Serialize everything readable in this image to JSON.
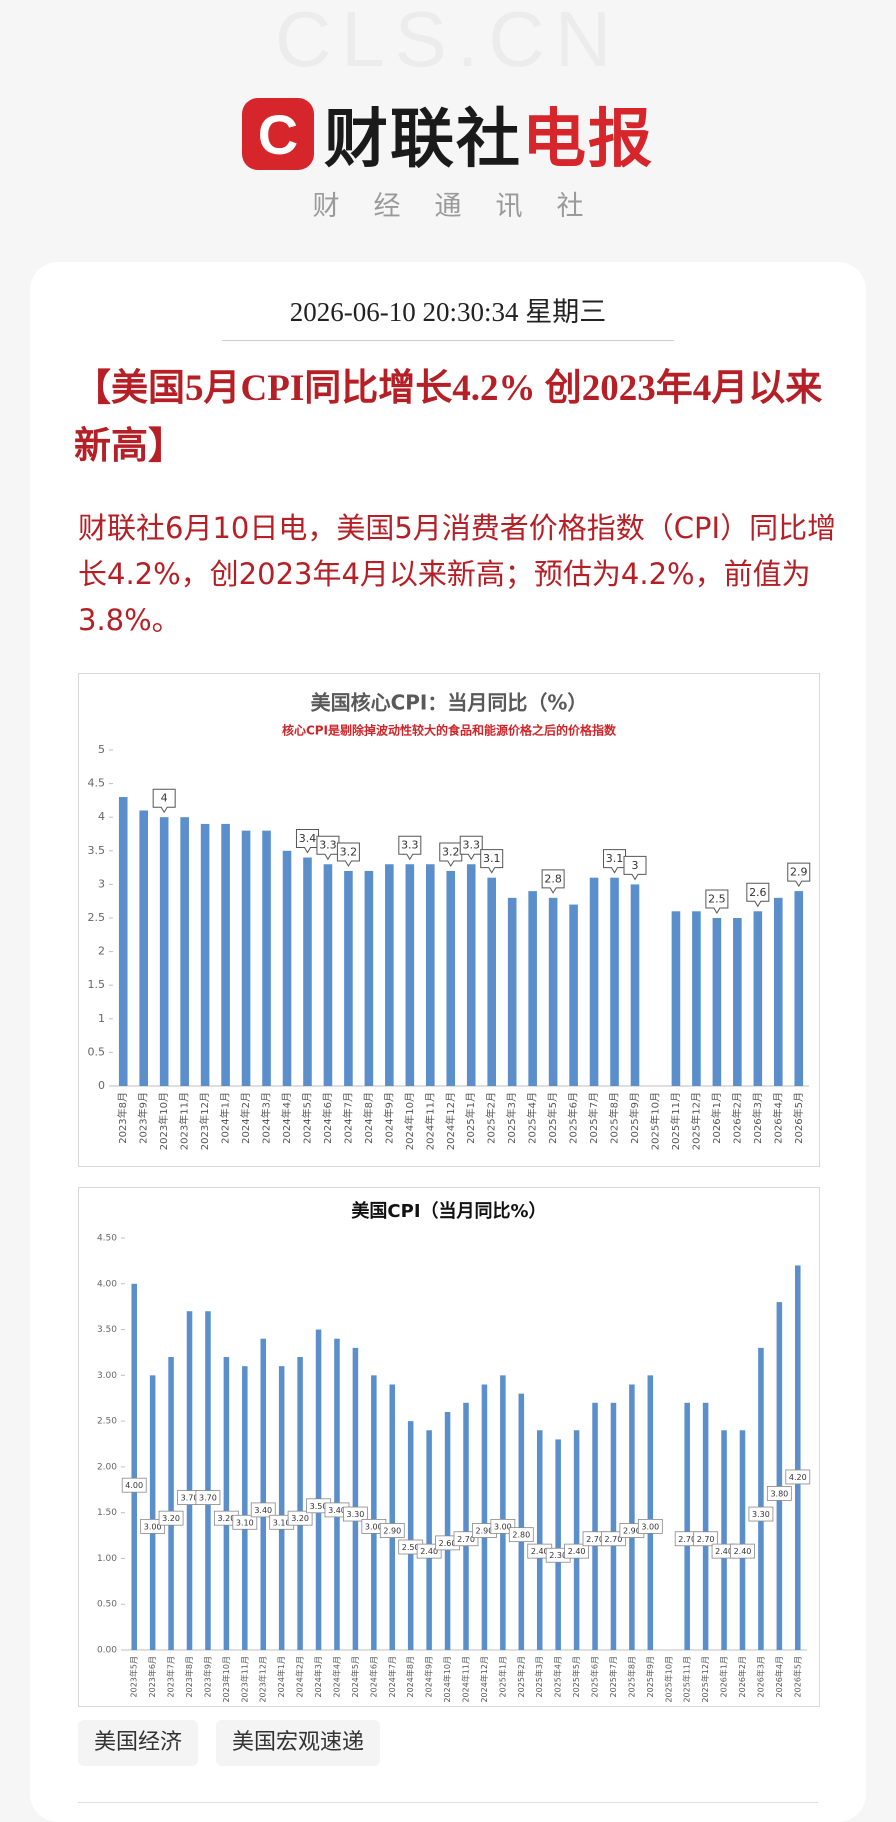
{
  "header": {
    "watermark": "CLS.CN",
    "logo_icon": "C",
    "brand": [
      "财联社",
      "电报"
    ],
    "tagline": "财经通讯社"
  },
  "article": {
    "datetime": "2026-06-10 20:30:34 星期三",
    "title": "【美国5月CPI同比增长4.2% 创2023年4月以来新高】",
    "body": "财联社6月10日电，美国5月消费者价格指数（CPI）同比增长4.2%，创2023年4月以来新高；预估为4.2%，前值为3.8%。"
  },
  "chart_data": [
    {
      "type": "bar",
      "title": "美国核心CPI：当月同比（%）",
      "subtitle": "核心CPI是剔除掉波动性较大的食品和能源价格之后的价格指数",
      "categories": [
        "2023年8月",
        "2023年9月",
        "2023年10月",
        "2023年11月",
        "2023年12月",
        "2024年1月",
        "2024年2月",
        "2024年3月",
        "2024年4月",
        "2024年5月",
        "2024年6月",
        "2024年7月",
        "2024年8月",
        "2024年9月",
        "2024年10月",
        "2024年11月",
        "2024年12月",
        "2025年1月",
        "2025年2月",
        "2025年3月",
        "2025年4月",
        "2025年5月",
        "2025年6月",
        "2025年7月",
        "2025年8月",
        "2025年9月",
        "2025年10月",
        "2025年11月",
        "2025年12月",
        "2026年1月",
        "2026年2月",
        "2026年3月",
        "2026年4月",
        "2026年5月"
      ],
      "values": [
        4.3,
        4.1,
        4.0,
        4.0,
        3.9,
        3.9,
        3.8,
        3.8,
        3.5,
        3.4,
        3.3,
        3.2,
        3.2,
        3.3,
        3.3,
        3.3,
        3.2,
        3.3,
        3.1,
        2.8,
        2.9,
        2.8,
        2.7,
        3.1,
        3.1,
        3.0,
        null,
        2.6,
        2.6,
        2.5,
        2.5,
        2.6,
        2.8,
        2.9
      ],
      "value_labels": [
        null,
        null,
        "4",
        null,
        null,
        null,
        null,
        null,
        null,
        "3.4",
        "3.3",
        "3.2",
        null,
        null,
        "3.3",
        null,
        "3.2",
        "3.3",
        "3.1",
        null,
        null,
        "2.8",
        null,
        null,
        "3.1",
        "3",
        null,
        null,
        null,
        "2.5",
        null,
        "2.6",
        null,
        "2.9"
      ],
      "color": "#5b8fcc",
      "ylim": [
        0,
        5
      ],
      "yticks": [
        0,
        0.5,
        1,
        1.5,
        2,
        2.5,
        3,
        3.5,
        4,
        4.5,
        5
      ],
      "grid": false
    },
    {
      "type": "bar",
      "title": "美国CPI（当月同比%）",
      "categories": [
        "2023年5月",
        "2023年6月",
        "2023年7月",
        "2023年8月",
        "2023年9月",
        "2023年10月",
        "2023年11月",
        "2023年12月",
        "2024年1月",
        "2024年2月",
        "2024年3月",
        "2024年4月",
        "2024年5月",
        "2024年6月",
        "2024年7月",
        "2024年8月",
        "2024年9月",
        "2024年10月",
        "2024年11月",
        "2024年12月",
        "2025年1月",
        "2025年2月",
        "2025年3月",
        "2025年4月",
        "2025年5月",
        "2025年6月",
        "2025年7月",
        "2025年8月",
        "2025年9月",
        "2025年10月",
        "2025年11月",
        "2025年12月",
        "2026年1月",
        "2026年2月",
        "2026年3月",
        "2026年4月",
        "2026年5月"
      ],
      "values": [
        4.0,
        3.0,
        3.2,
        3.7,
        3.7,
        3.2,
        3.1,
        3.4,
        3.1,
        3.2,
        3.5,
        3.4,
        3.3,
        3.0,
        2.9,
        2.5,
        2.4,
        2.6,
        2.7,
        2.9,
        3.0,
        2.8,
        2.4,
        2.3,
        2.4,
        2.7,
        2.7,
        2.9,
        3.0,
        null,
        2.7,
        2.7,
        2.4,
        2.4,
        3.3,
        3.8,
        4.2
      ],
      "value_labels": [
        "4.00",
        "3.00",
        "3.20",
        "3.70",
        "3.70",
        "3.20",
        "3.10",
        "3.40",
        "3.10",
        "3.20",
        "3.50",
        "3.40",
        "3.30",
        "3.00",
        "2.90",
        "2.50",
        "2.40",
        "2.60",
        "2.70",
        "2.90",
        "3.00",
        "2.80",
        "2.40",
        "2.30",
        "2.40",
        "2.70",
        "2.70",
        "2.90",
        "3.00",
        null,
        "2.70",
        "2.70",
        "2.40",
        "2.40",
        "3.30",
        "3.80",
        "4.20"
      ],
      "color": "#5b8fcc",
      "ylim": [
        0,
        4.5
      ],
      "yticks": [
        {
          "value": 0,
          "label": "0.00"
        },
        {
          "value": 0.5,
          "label": "0.50"
        },
        {
          "value": 1,
          "label": "1.00"
        },
        {
          "value": 1.5,
          "label": "1.50"
        },
        {
          "value": 2,
          "label": "2.00"
        },
        {
          "value": 2.5,
          "label": "2.50"
        },
        {
          "value": 3,
          "label": "3.00"
        },
        {
          "value": 3.5,
          "label": "3.50"
        },
        {
          "value": 4,
          "label": "4.00"
        },
        {
          "value": 4.5,
          "label": "4.50"
        }
      ],
      "grid": false
    }
  ],
  "tags": [
    "美国经济",
    "美国宏观速递"
  ]
}
